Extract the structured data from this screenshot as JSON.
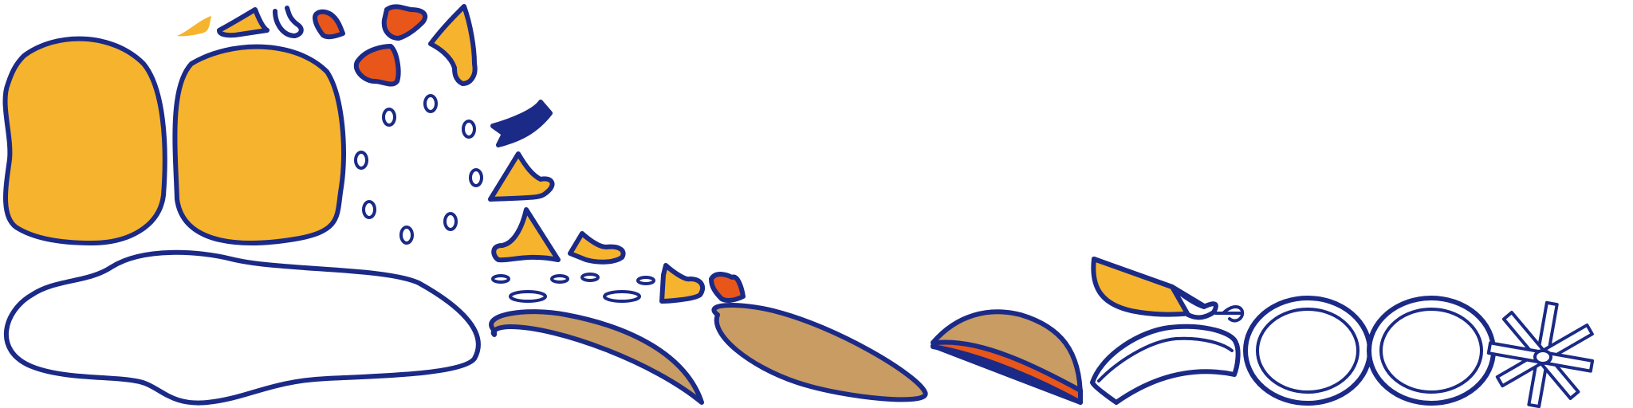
{
  "palette": {
    "outline": "#1b2a86",
    "yellow": "#f6b32d",
    "orange": "#e8561a",
    "tan": "#c89c62",
    "white": "#ffffff"
  },
  "icons": [
    "yellow-blob-icon",
    "white-blob-icon",
    "leaf-shape-icon",
    "cone-shape-icon",
    "ring-icon",
    "asterisk-spoke-icon",
    "bean-dot-icon"
  ]
}
